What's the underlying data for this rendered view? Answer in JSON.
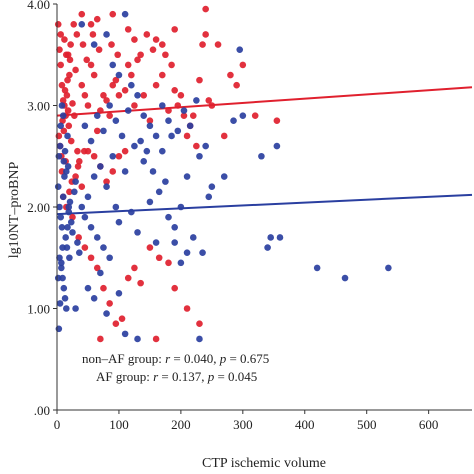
{
  "chart_data": {
    "type": "scatter",
    "title": "",
    "xlabel": "CTP ischemic volume",
    "ylabel": "lg10NT–proBNP",
    "xlim": [
      0,
      670
    ],
    "ylim": [
      0,
      4
    ],
    "x_ticks": [
      "0",
      "100",
      "200",
      "300",
      "400",
      "500",
      "600"
    ],
    "x_tick_values": [
      0,
      100,
      200,
      300,
      400,
      500,
      600
    ],
    "y_ticks": [
      ".00",
      "1.00",
      "2.00",
      "3.00",
      "4.00"
    ],
    "y_tick_values": [
      0,
      1,
      2,
      3,
      4
    ],
    "grid": false,
    "legend": "none",
    "annotations": [
      {
        "pre": "non–AF group: ",
        "r_label": "r",
        "r_eq": " = 0.040, ",
        "p_label": "p",
        "p_eq": " = 0.675"
      },
      {
        "pre": "AF group: ",
        "r_label": "r",
        "r_eq": " = 0.137, ",
        "p_label": "p",
        "p_eq": " = 0.045"
      }
    ],
    "series": [
      {
        "group": "AF",
        "color": "#e0202e",
        "fit_line": {
          "x": [
            0,
            670
          ],
          "y": [
            2.9,
            3.18
          ]
        },
        "points": [
          [
            2,
            3.8
          ],
          [
            4,
            3.55
          ],
          [
            6,
            3.4
          ],
          [
            8,
            3.2
          ],
          [
            10,
            3.05
          ],
          [
            12,
            3.0
          ],
          [
            14,
            2.9
          ],
          [
            16,
            3.1
          ],
          [
            18,
            2.95
          ],
          [
            20,
            3.3
          ],
          [
            3,
            2.7
          ],
          [
            5,
            2.6
          ],
          [
            7,
            2.5
          ],
          [
            9,
            2.85
          ],
          [
            11,
            2.75
          ],
          [
            13,
            3.15
          ],
          [
            15,
            3.5
          ],
          [
            17,
            3.25
          ],
          [
            19,
            2.8
          ],
          [
            21,
            3.45
          ],
          [
            23,
            2.65
          ],
          [
            25,
            3.02
          ],
          [
            28,
            2.9
          ],
          [
            30,
            3.35
          ],
          [
            33,
            2.55
          ],
          [
            36,
            2.45
          ],
          [
            40,
            3.2
          ],
          [
            45,
            3.1
          ],
          [
            50,
            3.0
          ],
          [
            55,
            3.4
          ],
          [
            60,
            3.3
          ],
          [
            65,
            2.75
          ],
          [
            70,
            2.95
          ],
          [
            75,
            3.1
          ],
          [
            80,
            3.05
          ],
          [
            85,
            2.9
          ],
          [
            90,
            3.2
          ],
          [
            95,
            3.25
          ],
          [
            100,
            3.1
          ],
          [
            110,
            3.15
          ],
          [
            120,
            3.3
          ],
          [
            125,
            3.0
          ],
          [
            130,
            3.45
          ],
          [
            140,
            3.1
          ],
          [
            150,
            2.85
          ],
          [
            160,
            3.2
          ],
          [
            170,
            3.3
          ],
          [
            180,
            2.95
          ],
          [
            185,
            3.4
          ],
          [
            190,
            3.15
          ],
          [
            200,
            3.1
          ],
          [
            210,
            2.7
          ],
          [
            220,
            2.9
          ],
          [
            230,
            3.25
          ],
          [
            235,
            3.6
          ],
          [
            240,
            3.95
          ],
          [
            245,
            3.05
          ],
          [
            250,
            3.0
          ],
          [
            270,
            2.7
          ],
          [
            300,
            3.4
          ],
          [
            355,
            2.85
          ],
          [
            6,
            3.7
          ],
          [
            12,
            3.65
          ],
          [
            18,
            3.5
          ],
          [
            22,
            3.6
          ],
          [
            27,
            3.8
          ],
          [
            32,
            3.7
          ],
          [
            42,
            3.6
          ],
          [
            48,
            3.45
          ],
          [
            58,
            3.7
          ],
          [
            68,
            3.55
          ],
          [
            88,
            3.6
          ],
          [
            98,
            3.5
          ],
          [
            115,
            3.4
          ],
          [
            135,
            3.5
          ],
          [
            145,
            3.7
          ],
          [
            155,
            3.55
          ],
          [
            175,
            3.5
          ],
          [
            195,
            3.0
          ],
          [
            205,
            2.9
          ],
          [
            215,
            2.8
          ],
          [
            225,
            2.6
          ],
          [
            50,
            2.55
          ],
          [
            60,
            2.5
          ],
          [
            70,
            2.4
          ],
          [
            80,
            2.25
          ],
          [
            90,
            2.35
          ],
          [
            100,
            2.5
          ],
          [
            110,
            2.55
          ],
          [
            30,
            2.3
          ],
          [
            40,
            2.2
          ],
          [
            20,
            2.15
          ],
          [
            10,
            2.1
          ],
          [
            15,
            2.0
          ],
          [
            25,
            1.9
          ],
          [
            35,
            1.7
          ],
          [
            45,
            1.6
          ],
          [
            55,
            1.5
          ],
          [
            65,
            1.4
          ],
          [
            75,
            1.2
          ],
          [
            85,
            1.05
          ],
          [
            95,
            0.85
          ],
          [
            105,
            0.9
          ],
          [
            115,
            1.3
          ],
          [
            125,
            1.4
          ],
          [
            135,
            1.25
          ],
          [
            150,
            1.6
          ],
          [
            165,
            1.5
          ],
          [
            180,
            1.45
          ],
          [
            190,
            1.2
          ],
          [
            210,
            1.0
          ],
          [
            230,
            0.85
          ],
          [
            70,
            0.7
          ],
          [
            160,
            0.7
          ],
          [
            40,
            3.9
          ],
          [
            55,
            3.8
          ],
          [
            65,
            3.85
          ],
          [
            90,
            3.9
          ],
          [
            115,
            3.75
          ],
          [
            125,
            3.65
          ],
          [
            160,
            3.65
          ],
          [
            170,
            3.6
          ],
          [
            190,
            3.75
          ],
          [
            240,
            3.7
          ],
          [
            260,
            3.6
          ],
          [
            280,
            3.3
          ],
          [
            290,
            3.2
          ],
          [
            320,
            2.9
          ],
          [
            8,
            2.35
          ],
          [
            14,
            2.45
          ],
          [
            24,
            2.25
          ],
          [
            34,
            2.4
          ],
          [
            44,
            2.55
          ]
        ]
      },
      {
        "group": "non-AF",
        "color": "#2a3fa0",
        "fit_line": {
          "x": [
            0,
            670
          ],
          "y": [
            1.93,
            2.12
          ]
        },
        "points": [
          [
            2,
            2.2
          ],
          [
            4,
            2.0
          ],
          [
            6,
            1.9
          ],
          [
            8,
            1.8
          ],
          [
            10,
            2.1
          ],
          [
            12,
            2.3
          ],
          [
            14,
            1.7
          ],
          [
            16,
            1.6
          ],
          [
            18,
            2.4
          ],
          [
            20,
            1.5
          ],
          [
            3,
            2.5
          ],
          [
            5,
            2.6
          ],
          [
            7,
            1.4
          ],
          [
            9,
            1.3
          ],
          [
            11,
            1.2
          ],
          [
            13,
            1.1
          ],
          [
            15,
            1.0
          ],
          [
            17,
            2.7
          ],
          [
            19,
            1.95
          ],
          [
            21,
            2.05
          ],
          [
            23,
            1.85
          ],
          [
            25,
            1.75
          ],
          [
            28,
            2.15
          ],
          [
            30,
            2.25
          ],
          [
            33,
            1.65
          ],
          [
            36,
            1.55
          ],
          [
            40,
            2.0
          ],
          [
            45,
            1.9
          ],
          [
            50,
            2.1
          ],
          [
            55,
            1.8
          ],
          [
            60,
            2.3
          ],
          [
            65,
            1.7
          ],
          [
            70,
            2.4
          ],
          [
            75,
            1.6
          ],
          [
            80,
            2.2
          ],
          [
            85,
            1.5
          ],
          [
            90,
            2.5
          ],
          [
            95,
            2.0
          ],
          [
            100,
            1.85
          ],
          [
            110,
            2.35
          ],
          [
            120,
            1.95
          ],
          [
            125,
            2.6
          ],
          [
            130,
            1.75
          ],
          [
            140,
            2.45
          ],
          [
            150,
            2.05
          ],
          [
            160,
            1.65
          ],
          [
            170,
            2.55
          ],
          [
            180,
            1.9
          ],
          [
            185,
            2.7
          ],
          [
            190,
            1.8
          ],
          [
            200,
            2.0
          ],
          [
            210,
            2.3
          ],
          [
            220,
            1.7
          ],
          [
            230,
            2.5
          ],
          [
            235,
            1.55
          ],
          [
            240,
            2.6
          ],
          [
            245,
            2.1
          ],
          [
            250,
            2.2
          ],
          [
            270,
            2.3
          ],
          [
            285,
            2.85
          ],
          [
            300,
            2.9
          ],
          [
            330,
            2.5
          ],
          [
            345,
            1.7
          ],
          [
            340,
            1.6
          ],
          [
            355,
            2.6
          ],
          [
            360,
            1.7
          ],
          [
            420,
            1.4
          ],
          [
            465,
            1.3
          ],
          [
            535,
            1.4
          ],
          [
            295,
            3.55
          ],
          [
            60,
            3.6
          ],
          [
            80,
            3.7
          ],
          [
            110,
            3.9
          ],
          [
            40,
            3.8
          ],
          [
            90,
            3.4
          ],
          [
            100,
            3.3
          ],
          [
            120,
            3.2
          ],
          [
            130,
            3.1
          ],
          [
            140,
            2.9
          ],
          [
            150,
            2.8
          ],
          [
            160,
            2.7
          ],
          [
            170,
            3.0
          ],
          [
            180,
            2.85
          ],
          [
            195,
            2.75
          ],
          [
            205,
            2.95
          ],
          [
            215,
            2.8
          ],
          [
            225,
            3.05
          ],
          [
            45,
            2.8
          ],
          [
            55,
            2.65
          ],
          [
            65,
            2.9
          ],
          [
            75,
            2.75
          ],
          [
            85,
            3.0
          ],
          [
            95,
            2.85
          ],
          [
            105,
            2.7
          ],
          [
            115,
            2.95
          ],
          [
            135,
            2.65
          ],
          [
            145,
            2.55
          ],
          [
            155,
            2.35
          ],
          [
            165,
            2.15
          ],
          [
            175,
            2.25
          ],
          [
            190,
            1.65
          ],
          [
            200,
            1.45
          ],
          [
            210,
            1.55
          ],
          [
            30,
            1.0
          ],
          [
            50,
            1.2
          ],
          [
            60,
            1.1
          ],
          [
            70,
            1.35
          ],
          [
            80,
            0.95
          ],
          [
            100,
            1.15
          ],
          [
            110,
            0.75
          ],
          [
            130,
            0.7
          ],
          [
            230,
            0.7
          ],
          [
            2,
            1.3
          ],
          [
            4,
            1.5
          ],
          [
            6,
            2.8
          ],
          [
            8,
            3.0
          ],
          [
            10,
            2.9
          ],
          [
            3,
            0.8
          ],
          [
            5,
            1.05
          ],
          [
            7,
            1.45
          ],
          [
            9,
            1.6
          ],
          [
            11,
            2.45
          ],
          [
            13,
            2.55
          ],
          [
            15,
            2.35
          ],
          [
            17,
            1.8
          ],
          [
            19,
            2.0
          ]
        ]
      }
    ]
  }
}
